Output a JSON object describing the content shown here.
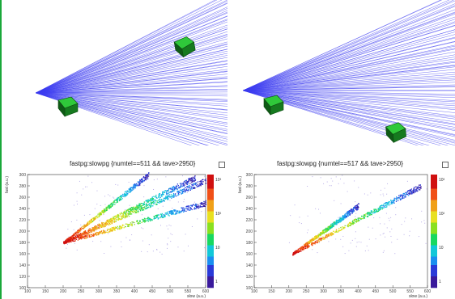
{
  "colors": {
    "accent_green": "#1aa83a",
    "ray_blue": "#3d3df0",
    "module_green": "#1f9a2a"
  },
  "panels": {
    "top_left": {
      "type": "event-display",
      "rays_upper": 55,
      "rays_lower": 30
    },
    "top_right": {
      "type": "event-display",
      "rays_upper": 50,
      "rays_lower": 32
    },
    "bottom_left": {
      "title": "fastpg:slowpg {numtel==511 && tave>2950}",
      "xlabel": "slow (a.u.)",
      "ylabel": "fast (a.u.)",
      "xticks": [
        "100",
        "150",
        "200",
        "250",
        "300",
        "350",
        "400",
        "450",
        "500",
        "550",
        "600"
      ],
      "yticks": [
        "100",
        "120",
        "140",
        "160",
        "180",
        "200",
        "220",
        "240",
        "260",
        "280",
        "300"
      ],
      "cbticks": [
        "10³",
        "10²",
        "10",
        "1"
      ]
    },
    "bottom_right": {
      "title": "fastpg:slowpg {numtel==517 && tave>2950}",
      "xlabel": "slow (a.u.)",
      "ylabel": "fast (a.u.)",
      "xticks": [
        "100",
        "150",
        "200",
        "250",
        "300",
        "350",
        "400",
        "450",
        "500",
        "550",
        "600"
      ],
      "yticks": [
        "100",
        "120",
        "140",
        "160",
        "180",
        "200",
        "220",
        "240",
        "260",
        "280",
        "300"
      ],
      "cbticks": [
        "10³",
        "10²",
        "10",
        "1"
      ]
    }
  },
  "chart_data": [
    {
      "type": "heatmap",
      "title": "fastpg:slowpg {numtel==511 && tave>2950}",
      "xlabel": "slow (a.u.)",
      "ylabel": "fast (a.u.)",
      "xlim": [
        100,
        600
      ],
      "ylim": [
        100,
        300
      ],
      "z_scale": "log",
      "zlim": [
        1,
        1000
      ],
      "bands": [
        {
          "x0": 200,
          "y0": 180,
          "x1": 440,
          "y1": 300
        },
        {
          "x0": 200,
          "y0": 180,
          "x1": 570,
          "y1": 295
        },
        {
          "x0": 200,
          "y0": 180,
          "x1": 600,
          "y1": 290
        },
        {
          "x0": 200,
          "y0": 180,
          "x1": 600,
          "y1": 250
        }
      ]
    },
    {
      "type": "heatmap",
      "title": "fastpg:slowpg {numtel==517 && tave>2950}",
      "xlabel": "slow (a.u.)",
      "ylabel": "fast (a.u.)",
      "xlim": [
        100,
        600
      ],
      "ylim": [
        100,
        300
      ],
      "z_scale": "log",
      "zlim": [
        1,
        1000
      ],
      "bands": [
        {
          "x0": 210,
          "y0": 160,
          "x1": 400,
          "y1": 245
        },
        {
          "x0": 210,
          "y0": 160,
          "x1": 580,
          "y1": 280
        }
      ]
    }
  ]
}
